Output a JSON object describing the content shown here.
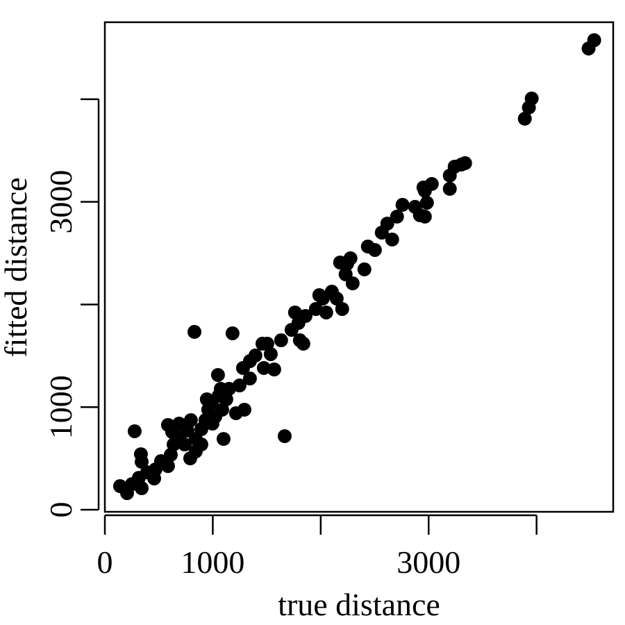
{
  "chart_data": {
    "type": "scatter",
    "xlabel": "true distance",
    "ylabel": "fitted distance",
    "color": "#000000",
    "xlim": [
      0,
      4710
    ],
    "ylim": [
      -20,
      4750
    ],
    "xticks": [
      0,
      1000,
      {
        "value": 2000
      },
      3000,
      {
        "value": 4000
      }
    ],
    "yticks": [
      0,
      1000,
      {
        "value": 2000
      },
      3000,
      {
        "value": 4000
      }
    ],
    "x": [
      141,
      206,
      251,
      341,
      315,
      276,
      334,
      341,
      392,
      457,
      469,
      521,
      585,
      611,
      585,
      637,
      688,
      740,
      791,
      765,
      830,
      842,
      894,
      932,
      958,
      997,
      1023,
      945,
      1055,
      1048,
      1087,
      1100,
      1151,
      1183,
      1215,
      1248,
      1293,
      1280,
      1344,
      1395,
      1460,
      1473,
      1537,
      1569,
      1633,
      1666,
      1730,
      1762,
      1807,
      1839,
      1859,
      1955,
      1987,
      2051,
      2103,
      2148,
      2199,
      2180,
      2231,
      2276,
      2296,
      2405,
      2437,
      2502,
      2566,
      2617,
      2662,
      2707,
      2758,
      2874,
      2919,
      2965,
      2965,
      2984,
      3029,
      3196,
      3196,
      3241,
      3305,
      3338,
      3891,
      3929,
      3955,
      4482,
      4534,
      842,
      894,
      990,
      1074,
      1125,
      797,
      688,
      624,
      1344,
      1505,
      1794,
      2019,
      2244,
      2952
    ],
    "values": [
      230,
      162,
      250,
      210,
      311,
      765,
      541,
      467,
      365,
      305,
      393,
      474,
      426,
      535,
      826,
      636,
      704,
      636,
      501,
      772,
      1733,
      690,
      785,
      873,
      975,
      839,
      907,
      1076,
      1110,
      1313,
      975,
      690,
      1178,
      1719,
      941,
      1211,
      975,
      1381,
      1279,
      1503,
      1618,
      1381,
      1516,
      1367,
      1651,
      717,
      1753,
      1922,
      1651,
      1618,
      1888,
      1956,
      2091,
      1922,
      2125,
      2058,
      1956,
      2409,
      2294,
      2450,
      2206,
      2342,
      2565,
      2531,
      2700,
      2788,
      2633,
      2856,
      2971,
      2951,
      2870,
      2856,
      3107,
      2991,
      3174,
      3127,
      3256,
      3343,
      3364,
      3377,
      3810,
      3919,
      4007,
      4494,
      4575,
      568,
      636,
      1042,
      1178,
      1076,
      873,
      839,
      758,
      1448,
      1618,
      1820,
      2058,
      2396,
      3140
    ]
  }
}
